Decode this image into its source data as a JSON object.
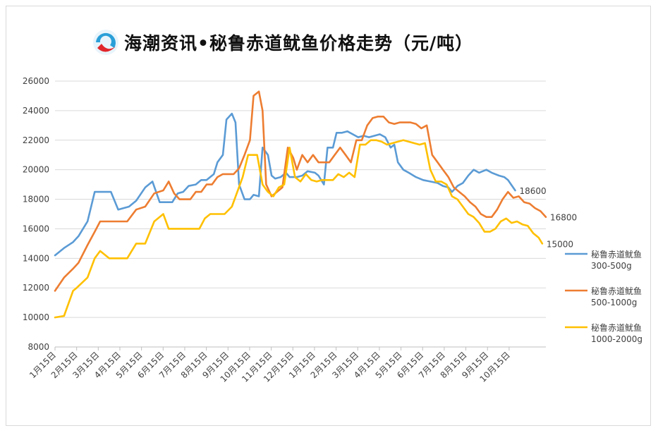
{
  "header": {
    "title": "海潮资讯•秘鲁赤道鱿鱼价格走势（元/吨）"
  },
  "chart_data": {
    "type": "line",
    "title": "海潮资讯•秘鲁赤道鱿鱼价格走势（元/吨）",
    "xlabel": "",
    "ylabel": "",
    "ylim": [
      8000,
      26000
    ],
    "yticks": [
      8000,
      10000,
      12000,
      14000,
      16000,
      18000,
      20000,
      22000,
      24000,
      26000
    ],
    "grid": true,
    "legend_position": "right",
    "categories": [
      "1月15日",
      "2月15日",
      "3月15日",
      "4月15日",
      "5月15日",
      "6月15日",
      "7月15日",
      "8月15日",
      "9月15日",
      "10月15日",
      "11月15日",
      "12月15日",
      "1月15日",
      "2月15日",
      "3月15日",
      "4月15日",
      "5月15日",
      "6月15日",
      "7月15日",
      "8月15日",
      "9月15日",
      "10月15日"
    ],
    "x_span": [
      0,
      22.7
    ],
    "series": [
      {
        "name": "秘鲁赤道鱿鱼 300-500g",
        "color": "#5B9BD5",
        "end_label": "18600",
        "points": [
          [
            0,
            14200
          ],
          [
            0.5,
            14700
          ],
          [
            1,
            15100
          ],
          [
            1.3,
            15500
          ],
          [
            1.7,
            16300
          ],
          [
            1.8,
            16500
          ],
          [
            2.2,
            18500
          ],
          [
            2.6,
            18500
          ],
          [
            3.1,
            18500
          ],
          [
            3.5,
            17300
          ],
          [
            3.8,
            17400
          ],
          [
            4.1,
            17500
          ],
          [
            4.5,
            17900
          ],
          [
            5,
            18800
          ],
          [
            5.4,
            19200
          ],
          [
            5.8,
            17800
          ],
          [
            6.1,
            17800
          ],
          [
            6.5,
            17800
          ],
          [
            6.8,
            18400
          ],
          [
            7.1,
            18500
          ],
          [
            7.4,
            18900
          ],
          [
            7.8,
            19000
          ],
          [
            8.1,
            19300
          ],
          [
            8.4,
            19300
          ],
          [
            8.8,
            19700
          ],
          [
            9,
            20500
          ],
          [
            9.3,
            21000
          ],
          [
            9.5,
            23400
          ],
          [
            9.8,
            23800
          ],
          [
            10,
            23200
          ],
          [
            10.2,
            19000
          ],
          [
            10.5,
            18000
          ],
          [
            10.8,
            18000
          ],
          [
            11,
            18300
          ],
          [
            11.3,
            18200
          ],
          [
            11.5,
            21500
          ],
          [
            11.8,
            21000
          ],
          [
            12,
            19600
          ],
          [
            12.2,
            19400
          ],
          [
            12.5,
            19500
          ],
          [
            12.8,
            19800
          ],
          [
            13,
            19500
          ],
          [
            13.4,
            19500
          ],
          [
            13.7,
            19600
          ],
          [
            14,
            19900
          ],
          [
            14.4,
            19800
          ],
          [
            14.6,
            19600
          ],
          [
            14.9,
            19000
          ],
          [
            15.1,
            21500
          ],
          [
            15.4,
            21500
          ],
          [
            15.6,
            22500
          ],
          [
            15.9,
            22500
          ],
          [
            16.2,
            22600
          ],
          [
            16.5,
            22400
          ],
          [
            16.8,
            22200
          ],
          [
            17.1,
            22300
          ],
          [
            17.4,
            22200
          ],
          [
            17.7,
            22300
          ],
          [
            18,
            22400
          ],
          [
            18.3,
            22200
          ],
          [
            18.6,
            21500
          ],
          [
            18.8,
            21700
          ],
          [
            19,
            20500
          ],
          [
            19.3,
            20000
          ],
          [
            19.6,
            19800
          ],
          [
            20,
            19500
          ],
          [
            20.4,
            19300
          ],
          [
            20.8,
            19200
          ],
          [
            21.2,
            19100
          ],
          [
            21.5,
            18900
          ],
          [
            21.8,
            18800
          ],
          [
            22,
            18500
          ],
          [
            22.3,
            18900
          ],
          [
            22.6,
            19100
          ],
          [
            22.9,
            19600
          ],
          [
            23.2,
            20000
          ],
          [
            23.5,
            19800
          ],
          [
            23.9,
            20000
          ],
          [
            24.2,
            19800
          ],
          [
            24.6,
            19600
          ],
          [
            24.9,
            19500
          ],
          [
            25.1,
            19300
          ],
          [
            25.5,
            18600
          ]
        ]
      },
      {
        "name": "秘鲁赤道鱿鱼 500-1000g",
        "color": "#ED7D31",
        "end_label": "16800",
        "points": [
          [
            0,
            11800
          ],
          [
            0.5,
            12700
          ],
          [
            1,
            13300
          ],
          [
            1.3,
            13700
          ],
          [
            1.8,
            14900
          ],
          [
            2.2,
            15800
          ],
          [
            2.5,
            16500
          ],
          [
            3,
            16500
          ],
          [
            3.5,
            16500
          ],
          [
            4,
            16500
          ],
          [
            4.5,
            17300
          ],
          [
            5,
            17500
          ],
          [
            5.5,
            18400
          ],
          [
            6,
            18600
          ],
          [
            6.3,
            19200
          ],
          [
            6.6,
            18400
          ],
          [
            6.9,
            18000
          ],
          [
            7.2,
            18000
          ],
          [
            7.5,
            18000
          ],
          [
            7.8,
            18500
          ],
          [
            8.1,
            18500
          ],
          [
            8.4,
            19000
          ],
          [
            8.7,
            19000
          ],
          [
            9,
            19500
          ],
          [
            9.3,
            19700
          ],
          [
            9.6,
            19700
          ],
          [
            9.9,
            19700
          ],
          [
            10.2,
            20100
          ],
          [
            10.5,
            21000
          ],
          [
            10.8,
            22000
          ],
          [
            11,
            25000
          ],
          [
            11.3,
            25300
          ],
          [
            11.5,
            24000
          ],
          [
            11.7,
            19000
          ],
          [
            12,
            18200
          ],
          [
            12.3,
            18500
          ],
          [
            12.6,
            18800
          ],
          [
            12.9,
            21500
          ],
          [
            13.2,
            20800
          ],
          [
            13.4,
            20000
          ],
          [
            13.7,
            21000
          ],
          [
            14,
            20500
          ],
          [
            14.3,
            21000
          ],
          [
            14.6,
            20500
          ],
          [
            14.9,
            20500
          ],
          [
            15.2,
            20500
          ],
          [
            15.5,
            21000
          ],
          [
            15.8,
            21500
          ],
          [
            16.1,
            21000
          ],
          [
            16.4,
            20500
          ],
          [
            16.7,
            22000
          ],
          [
            17,
            22000
          ],
          [
            17.3,
            23000
          ],
          [
            17.6,
            23500
          ],
          [
            17.9,
            23600
          ],
          [
            18.2,
            23600
          ],
          [
            18.5,
            23200
          ],
          [
            18.8,
            23100
          ],
          [
            19.1,
            23200
          ],
          [
            19.4,
            23200
          ],
          [
            19.7,
            23200
          ],
          [
            20,
            23100
          ],
          [
            20.3,
            22800
          ],
          [
            20.6,
            23000
          ],
          [
            20.9,
            21000
          ],
          [
            21.2,
            20500
          ],
          [
            21.5,
            20000
          ],
          [
            21.8,
            19500
          ],
          [
            22.1,
            18800
          ],
          [
            22.4,
            18500
          ],
          [
            22.7,
            18200
          ],
          [
            23,
            17800
          ],
          [
            23.3,
            17500
          ],
          [
            23.6,
            17000
          ],
          [
            23.9,
            16800
          ],
          [
            24.2,
            16800
          ],
          [
            24.5,
            17300
          ],
          [
            24.8,
            18000
          ],
          [
            25.1,
            18500
          ],
          [
            25.4,
            18100
          ],
          [
            25.7,
            18200
          ],
          [
            26,
            17800
          ],
          [
            26.3,
            17700
          ],
          [
            26.6,
            17400
          ],
          [
            26.9,
            17200
          ],
          [
            27.2,
            16800
          ]
        ]
      },
      {
        "name": "秘鲁赤道鱿鱼 1000-2000g",
        "color": "#FFC000",
        "end_label": "15000",
        "points": [
          [
            0,
            10000
          ],
          [
            0.5,
            10100
          ],
          [
            1,
            11800
          ],
          [
            1.2,
            12000
          ],
          [
            1.8,
            12700
          ],
          [
            2.2,
            14000
          ],
          [
            2.5,
            14500
          ],
          [
            3,
            14000
          ],
          [
            3.5,
            14000
          ],
          [
            4,
            14000
          ],
          [
            4.5,
            15000
          ],
          [
            5,
            15000
          ],
          [
            5.5,
            16500
          ],
          [
            6,
            17000
          ],
          [
            6.3,
            16000
          ],
          [
            6.8,
            16000
          ],
          [
            7.2,
            16000
          ],
          [
            7.6,
            16000
          ],
          [
            8,
            16000
          ],
          [
            8.3,
            16700
          ],
          [
            8.6,
            17000
          ],
          [
            9,
            17000
          ],
          [
            9.4,
            17000
          ],
          [
            9.8,
            17500
          ],
          [
            10.4,
            19500
          ],
          [
            10.7,
            21000
          ],
          [
            11.2,
            21000
          ],
          [
            11.5,
            19000
          ],
          [
            11.8,
            18500
          ],
          [
            12.1,
            18200
          ],
          [
            12.4,
            18800
          ],
          [
            12.7,
            19000
          ],
          [
            13,
            21500
          ],
          [
            13.3,
            19500
          ],
          [
            13.6,
            19200
          ],
          [
            13.9,
            19700
          ],
          [
            14.2,
            19300
          ],
          [
            14.5,
            19200
          ],
          [
            14.8,
            19300
          ],
          [
            15.1,
            19300
          ],
          [
            15.4,
            19300
          ],
          [
            15.7,
            19700
          ],
          [
            16,
            19500
          ],
          [
            16.3,
            19800
          ],
          [
            16.6,
            19500
          ],
          [
            16.9,
            21700
          ],
          [
            17.2,
            21700
          ],
          [
            17.5,
            22000
          ],
          [
            17.8,
            22000
          ],
          [
            18.1,
            21900
          ],
          [
            18.4,
            21700
          ],
          [
            18.7,
            21800
          ],
          [
            19,
            21900
          ],
          [
            19.3,
            22000
          ],
          [
            19.6,
            21900
          ],
          [
            19.9,
            21800
          ],
          [
            20.2,
            21700
          ],
          [
            20.5,
            21800
          ],
          [
            20.8,
            20000
          ],
          [
            21.1,
            19200
          ],
          [
            21.4,
            19200
          ],
          [
            21.7,
            19000
          ],
          [
            22,
            18200
          ],
          [
            22.3,
            18000
          ],
          [
            22.6,
            17500
          ],
          [
            22.9,
            17000
          ],
          [
            23.2,
            16800
          ],
          [
            23.5,
            16400
          ],
          [
            23.8,
            15800
          ],
          [
            24.1,
            15800
          ],
          [
            24.4,
            16000
          ],
          [
            24.7,
            16500
          ],
          [
            25,
            16700
          ],
          [
            25.3,
            16400
          ],
          [
            25.6,
            16500
          ],
          [
            25.9,
            16300
          ],
          [
            26.2,
            16200
          ],
          [
            26.5,
            15700
          ],
          [
            26.8,
            15400
          ],
          [
            27,
            15000
          ]
        ]
      }
    ]
  }
}
